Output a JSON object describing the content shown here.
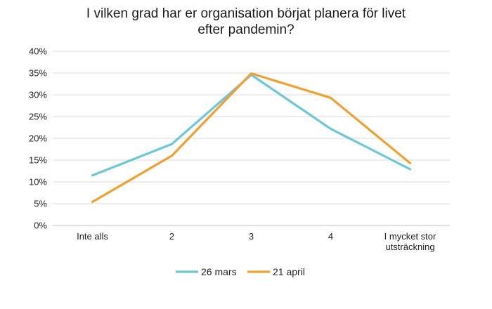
{
  "chart_data": {
    "type": "line",
    "title_lines": [
      "I vilken grad har er organisation börjat planera för livet",
      "efter pandemin?"
    ],
    "categories": [
      [
        "Inte alls"
      ],
      [
        "2"
      ],
      [
        "3"
      ],
      [
        "4"
      ],
      [
        "I mycket stor",
        "utsträckning"
      ]
    ],
    "series": [
      {
        "name": "26 mars",
        "color": "#6ec6d8",
        "values": [
          11.5,
          18.7,
          34.6,
          22.2,
          12.9
        ]
      },
      {
        "name": "21 april",
        "color": "#f0a030",
        "values": [
          5.4,
          16.0,
          34.9,
          29.3,
          14.3
        ]
      }
    ],
    "ylim": [
      0,
      40
    ],
    "yticks": [
      "0%",
      "5%",
      "10%",
      "15%",
      "20%",
      "25%",
      "30%",
      "35%",
      "40%"
    ],
    "grid": true,
    "legend_position": "bottom"
  }
}
